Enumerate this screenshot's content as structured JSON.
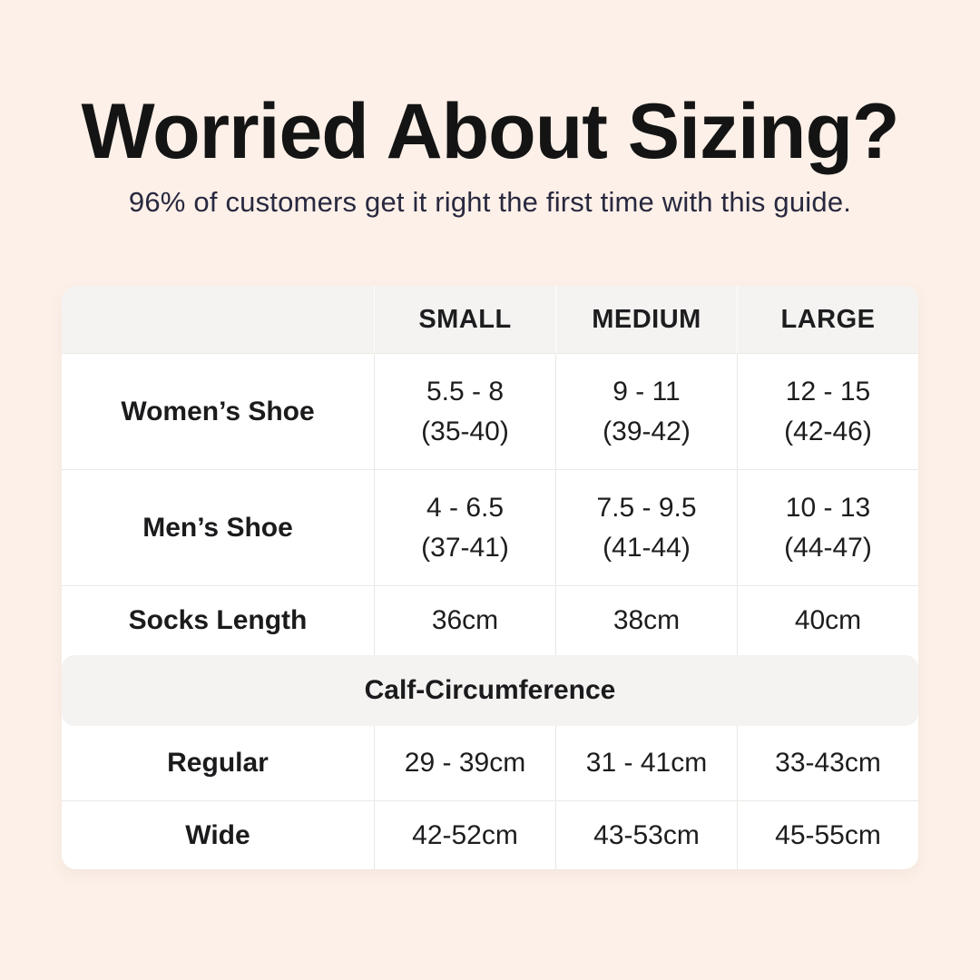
{
  "colors": {
    "background": "#fcf0e8",
    "band": "#f4f3f1",
    "divider": "#e9e7e4",
    "title_text": "#141414",
    "subtitle_text": "#28283f",
    "table_text": "#1d1d1f"
  },
  "header": {
    "title": "Worried About Sizing?",
    "subtitle": "96% of customers get it right the first time with this guide."
  },
  "table": {
    "columns": [
      "SMALL",
      "MEDIUM",
      "LARGE"
    ],
    "shoe_rows": [
      {
        "label": "Women’s Shoe",
        "cells": [
          [
            "5.5 - 8",
            "(35-40)"
          ],
          [
            "9 - 11",
            "(39-42)"
          ],
          [
            "12 - 15",
            "(42-46)"
          ]
        ]
      },
      {
        "label": "Men’s Shoe",
        "cells": [
          [
            "4 - 6.5",
            "(37-41)"
          ],
          [
            "7.5 - 9.5",
            "(41-44)"
          ],
          [
            "10 - 13",
            "(44-47)"
          ]
        ]
      }
    ],
    "socks_row": {
      "label": "Socks Length",
      "cells": [
        "36cm",
        "38cm",
        "40cm"
      ]
    },
    "calf_section_title": "Calf-Circumference",
    "calf_rows": [
      {
        "label": "Regular",
        "cells": [
          "29 - 39cm",
          "31 - 41cm",
          "33-43cm"
        ]
      },
      {
        "label": "Wide",
        "cells": [
          "42-52cm",
          "43-53cm",
          "45-55cm"
        ]
      }
    ]
  }
}
